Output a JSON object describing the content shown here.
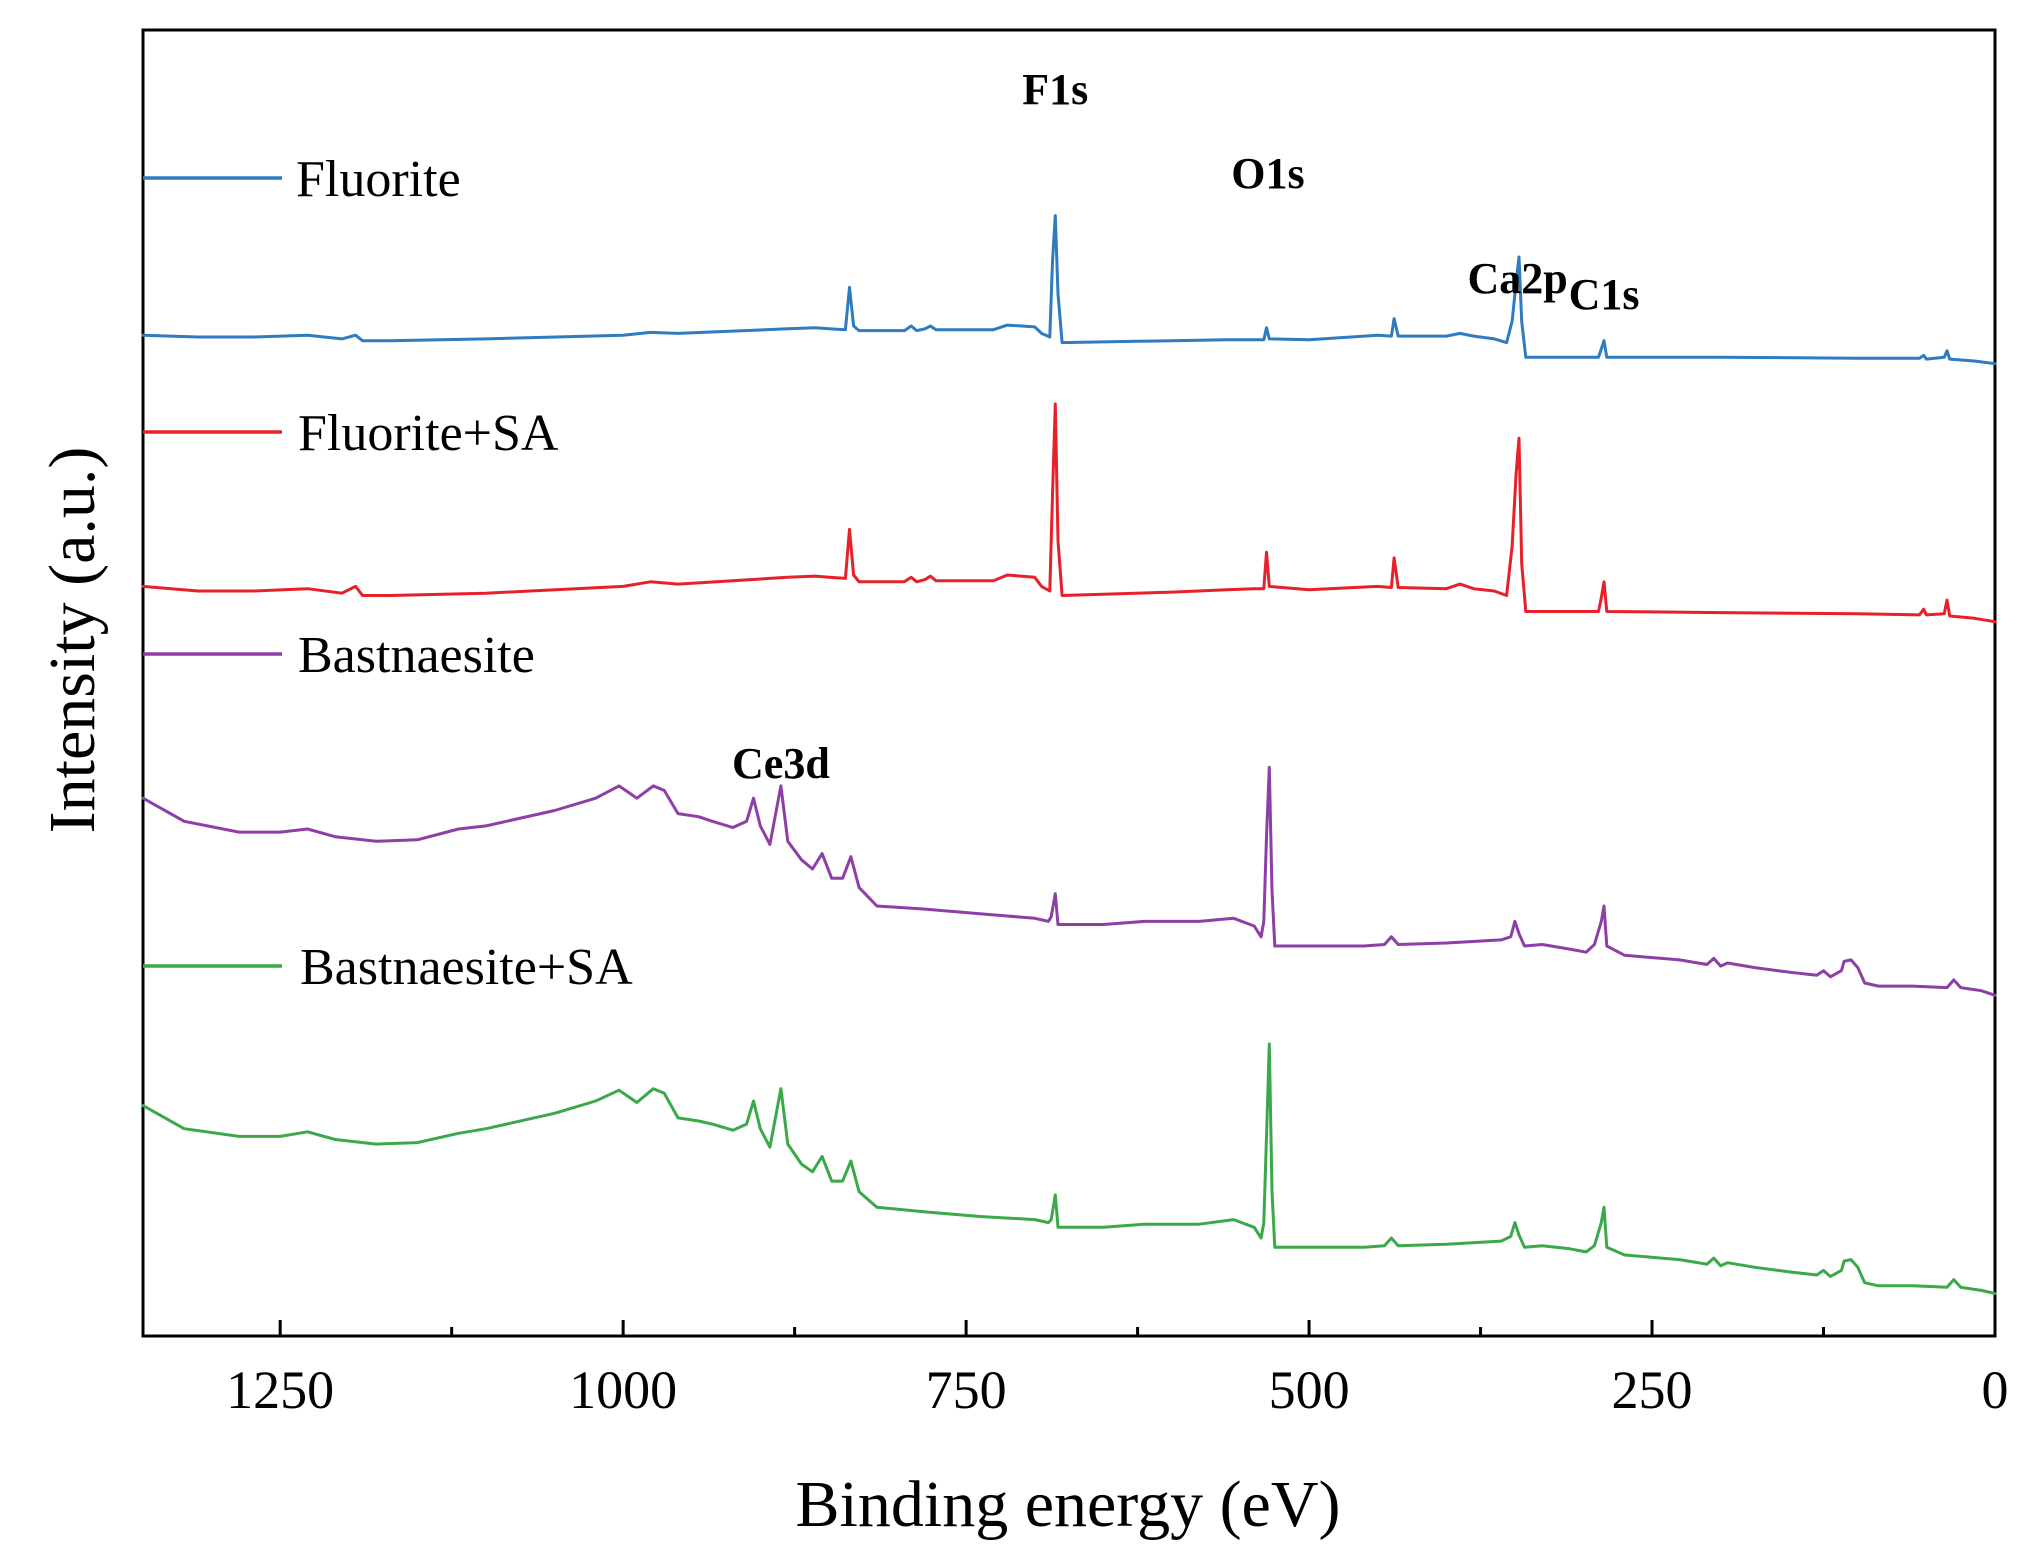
{
  "chart_data": {
    "type": "line",
    "title": "",
    "xlabel": "Binding energy (eV)",
    "ylabel": "Intensity (a.u.)",
    "xlim": [
      1350,
      0
    ],
    "x_reversed": true,
    "x_ticks": [
      1250,
      1000,
      750,
      500,
      250,
      0
    ],
    "x_tick_labels": [
      "1250",
      "1000",
      "750",
      "500",
      "250",
      "0"
    ],
    "y_ticks": [],
    "grid": false,
    "legend": "left, each entry placed above its own curve",
    "annotations": [
      {
        "text": "F1s",
        "x": 685
      },
      {
        "text": "O1s",
        "x": 530
      },
      {
        "text": "Ca2p",
        "x": 348
      },
      {
        "text": "C1s",
        "x": 285
      },
      {
        "text": "Ce3d",
        "x": 885
      }
    ],
    "series": [
      {
        "name": "Fluorite",
        "color": "#2e7bbf",
        "points": [
          [
            1350,
            40
          ],
          [
            1310,
            38
          ],
          [
            1270,
            38
          ],
          [
            1230,
            40
          ],
          [
            1205,
            36
          ],
          [
            1195,
            40
          ],
          [
            1190,
            34
          ],
          [
            1170,
            34
          ],
          [
            1100,
            36
          ],
          [
            1000,
            40
          ],
          [
            980,
            43
          ],
          [
            960,
            42
          ],
          [
            880,
            47
          ],
          [
            860,
            48
          ],
          [
            850,
            47
          ],
          [
            838,
            46
          ],
          [
            835,
            92
          ],
          [
            832,
            50
          ],
          [
            828,
            45
          ],
          [
            795,
            45
          ],
          [
            790,
            50
          ],
          [
            786,
            45
          ],
          [
            780,
            47
          ],
          [
            776,
            50
          ],
          [
            772,
            46
          ],
          [
            730,
            46
          ],
          [
            720,
            51
          ],
          [
            700,
            49
          ],
          [
            695,
            42
          ],
          [
            689,
            38
          ],
          [
            687,
            120
          ],
          [
            685,
            170
          ],
          [
            683,
            85
          ],
          [
            680,
            32
          ],
          [
            600,
            34
          ],
          [
            560,
            35
          ],
          [
            540,
            35
          ],
          [
            533,
            35
          ],
          [
            531,
            48
          ],
          [
            529,
            36
          ],
          [
            500,
            35
          ],
          [
            450,
            40
          ],
          [
            440,
            39
          ],
          [
            438,
            58
          ],
          [
            435,
            39
          ],
          [
            400,
            39
          ],
          [
            390,
            42
          ],
          [
            380,
            39
          ],
          [
            365,
            36
          ],
          [
            356,
            32
          ],
          [
            352,
            55
          ],
          [
            349,
            98
          ],
          [
            347,
            125
          ],
          [
            345,
            55
          ],
          [
            342,
            16
          ],
          [
            300,
            16
          ],
          [
            289,
            16
          ],
          [
            287,
            25
          ],
          [
            285,
            34
          ],
          [
            283,
            16
          ],
          [
            200,
            16
          ],
          [
            100,
            15
          ],
          [
            55,
            15
          ],
          [
            52,
            18
          ],
          [
            50,
            14
          ],
          [
            37,
            16
          ],
          [
            35,
            23
          ],
          [
            33,
            14
          ],
          [
            15,
            12
          ],
          [
            0,
            9
          ]
        ]
      },
      {
        "name": "Fluorite+SA",
        "color": "#e8202a",
        "points": [
          [
            1350,
            40
          ],
          [
            1310,
            36
          ],
          [
            1270,
            36
          ],
          [
            1230,
            38
          ],
          [
            1205,
            34
          ],
          [
            1195,
            40
          ],
          [
            1190,
            32
          ],
          [
            1170,
            32
          ],
          [
            1100,
            34
          ],
          [
            1000,
            40
          ],
          [
            980,
            44
          ],
          [
            960,
            42
          ],
          [
            880,
            48
          ],
          [
            860,
            49
          ],
          [
            850,
            48
          ],
          [
            838,
            47
          ],
          [
            835,
            90
          ],
          [
            832,
            50
          ],
          [
            828,
            44
          ],
          [
            795,
            44
          ],
          [
            790,
            48
          ],
          [
            786,
            44
          ],
          [
            780,
            46
          ],
          [
            776,
            49
          ],
          [
            772,
            45
          ],
          [
            730,
            45
          ],
          [
            720,
            50
          ],
          [
            700,
            48
          ],
          [
            695,
            40
          ],
          [
            689,
            36
          ],
          [
            687,
            120
          ],
          [
            685,
            200
          ],
          [
            683,
            80
          ],
          [
            680,
            32
          ],
          [
            600,
            35
          ],
          [
            560,
            37
          ],
          [
            540,
            38
          ],
          [
            533,
            38
          ],
          [
            531,
            70
          ],
          [
            529,
            40
          ],
          [
            500,
            37
          ],
          [
            450,
            40
          ],
          [
            440,
            39
          ],
          [
            438,
            65
          ],
          [
            435,
            39
          ],
          [
            400,
            38
          ],
          [
            390,
            42
          ],
          [
            380,
            38
          ],
          [
            365,
            36
          ],
          [
            356,
            32
          ],
          [
            352,
            75
          ],
          [
            349,
            140
          ],
          [
            347,
            170
          ],
          [
            345,
            60
          ],
          [
            342,
            18
          ],
          [
            300,
            18
          ],
          [
            289,
            18
          ],
          [
            287,
            30
          ],
          [
            285,
            44
          ],
          [
            283,
            18
          ],
          [
            200,
            17
          ],
          [
            100,
            16
          ],
          [
            55,
            15
          ],
          [
            52,
            20
          ],
          [
            50,
            15
          ],
          [
            37,
            16
          ],
          [
            35,
            28
          ],
          [
            33,
            14
          ],
          [
            15,
            12
          ],
          [
            0,
            9
          ]
        ]
      },
      {
        "name": "Bastnaesite",
        "color": "#8d3fa6",
        "points": [
          [
            1350,
            170
          ],
          [
            1320,
            155
          ],
          [
            1280,
            148
          ],
          [
            1250,
            148
          ],
          [
            1230,
            150
          ],
          [
            1210,
            145
          ],
          [
            1180,
            142
          ],
          [
            1150,
            143
          ],
          [
            1120,
            150
          ],
          [
            1100,
            152
          ],
          [
            1050,
            162
          ],
          [
            1020,
            170
          ],
          [
            1003,
            178
          ],
          [
            990,
            170
          ],
          [
            978,
            178
          ],
          [
            970,
            175
          ],
          [
            960,
            160
          ],
          [
            945,
            158
          ],
          [
            935,
            155
          ],
          [
            920,
            151
          ],
          [
            910,
            155
          ],
          [
            905,
            170
          ],
          [
            900,
            152
          ],
          [
            893,
            140
          ],
          [
            885,
            178
          ],
          [
            880,
            142
          ],
          [
            870,
            130
          ],
          [
            862,
            124
          ],
          [
            855,
            134
          ],
          [
            848,
            118
          ],
          [
            840,
            118
          ],
          [
            834,
            132
          ],
          [
            828,
            112
          ],
          [
            815,
            100
          ],
          [
            780,
            98
          ],
          [
            740,
            95
          ],
          [
            700,
            92
          ],
          [
            690,
            90
          ],
          [
            688,
            93
          ],
          [
            685,
            108
          ],
          [
            683,
            88
          ],
          [
            650,
            88
          ],
          [
            620,
            90
          ],
          [
            580,
            90
          ],
          [
            555,
            92
          ],
          [
            540,
            87
          ],
          [
            535,
            80
          ],
          [
            533,
            90
          ],
          [
            531,
            145
          ],
          [
            529,
            190
          ],
          [
            527,
            110
          ],
          [
            525,
            74
          ],
          [
            500,
            74
          ],
          [
            460,
            74
          ],
          [
            445,
            75
          ],
          [
            440,
            80
          ],
          [
            435,
            75
          ],
          [
            400,
            76
          ],
          [
            360,
            78
          ],
          [
            353,
            80
          ],
          [
            350,
            90
          ],
          [
            347,
            82
          ],
          [
            343,
            74
          ],
          [
            330,
            75
          ],
          [
            310,
            72
          ],
          [
            298,
            70
          ],
          [
            292,
            75
          ],
          [
            287,
            90
          ],
          [
            285,
            100
          ],
          [
            283,
            74
          ],
          [
            270,
            68
          ],
          [
            230,
            65
          ],
          [
            210,
            62
          ],
          [
            205,
            66
          ],
          [
            200,
            61
          ],
          [
            195,
            63
          ],
          [
            175,
            60
          ],
          [
            150,
            57
          ],
          [
            130,
            55
          ],
          [
            125,
            58
          ],
          [
            120,
            54
          ],
          [
            112,
            58
          ],
          [
            110,
            64
          ],
          [
            105,
            65
          ],
          [
            100,
            60
          ],
          [
            95,
            50
          ],
          [
            85,
            48
          ],
          [
            60,
            48
          ],
          [
            35,
            47
          ],
          [
            30,
            52
          ],
          [
            25,
            47
          ],
          [
            10,
            45
          ],
          [
            0,
            42
          ]
        ]
      },
      {
        "name": "Bastnaesite+SA",
        "color": "#3ba84a",
        "points": [
          [
            1350,
            160
          ],
          [
            1320,
            145
          ],
          [
            1280,
            140
          ],
          [
            1250,
            140
          ],
          [
            1230,
            143
          ],
          [
            1210,
            138
          ],
          [
            1180,
            135
          ],
          [
            1150,
            136
          ],
          [
            1120,
            142
          ],
          [
            1100,
            145
          ],
          [
            1050,
            155
          ],
          [
            1020,
            163
          ],
          [
            1003,
            170
          ],
          [
            990,
            162
          ],
          [
            978,
            171
          ],
          [
            970,
            168
          ],
          [
            960,
            152
          ],
          [
            945,
            150
          ],
          [
            935,
            148
          ],
          [
            920,
            144
          ],
          [
            910,
            148
          ],
          [
            905,
            163
          ],
          [
            900,
            145
          ],
          [
            893,
            133
          ],
          [
            885,
            171
          ],
          [
            880,
            135
          ],
          [
            870,
            122
          ],
          [
            862,
            117
          ],
          [
            855,
            127
          ],
          [
            848,
            111
          ],
          [
            840,
            111
          ],
          [
            834,
            124
          ],
          [
            828,
            104
          ],
          [
            815,
            94
          ],
          [
            780,
            91
          ],
          [
            740,
            88
          ],
          [
            700,
            86
          ],
          [
            690,
            84
          ],
          [
            688,
            86
          ],
          [
            685,
            102
          ],
          [
            683,
            81
          ],
          [
            650,
            81
          ],
          [
            620,
            83
          ],
          [
            580,
            83
          ],
          [
            555,
            86
          ],
          [
            540,
            81
          ],
          [
            535,
            74
          ],
          [
            533,
            84
          ],
          [
            531,
            140
          ],
          [
            529,
            200
          ],
          [
            527,
            104
          ],
          [
            525,
            68
          ],
          [
            500,
            68
          ],
          [
            460,
            68
          ],
          [
            445,
            69
          ],
          [
            440,
            74
          ],
          [
            435,
            69
          ],
          [
            400,
            70
          ],
          [
            360,
            72
          ],
          [
            353,
            75
          ],
          [
            350,
            84
          ],
          [
            347,
            76
          ],
          [
            343,
            68
          ],
          [
            330,
            69
          ],
          [
            310,
            67
          ],
          [
            298,
            65
          ],
          [
            292,
            69
          ],
          [
            287,
            84
          ],
          [
            285,
            94
          ],
          [
            283,
            68
          ],
          [
            270,
            63
          ],
          [
            230,
            60
          ],
          [
            210,
            57
          ],
          [
            205,
            61
          ],
          [
            200,
            56
          ],
          [
            195,
            58
          ],
          [
            175,
            55
          ],
          [
            150,
            52
          ],
          [
            130,
            50
          ],
          [
            125,
            53
          ],
          [
            120,
            49
          ],
          [
            112,
            53
          ],
          [
            110,
            59
          ],
          [
            105,
            60
          ],
          [
            100,
            55
          ],
          [
            95,
            45
          ],
          [
            85,
            43
          ],
          [
            60,
            43
          ],
          [
            35,
            42
          ],
          [
            30,
            47
          ],
          [
            25,
            42
          ],
          [
            10,
            40
          ],
          [
            0,
            38
          ]
        ]
      }
    ]
  }
}
